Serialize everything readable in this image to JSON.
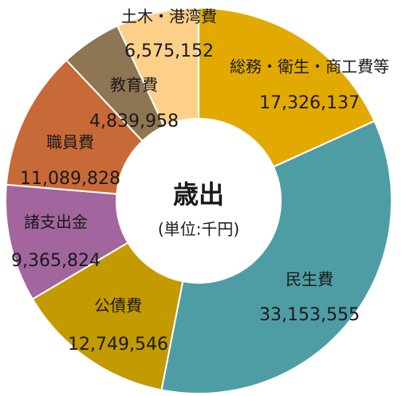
{
  "chart_data": {
    "type": "donut",
    "title": "歳出",
    "subtitle": "(単位:千円)",
    "categories": [
      "総務・衛生・商工費等",
      "民生費",
      "公債費",
      "諸支出金",
      "職員費",
      "教育費",
      "土木・港湾費"
    ],
    "values": [
      17326137,
      33153555,
      12749546,
      9365824,
      11089828,
      4839958,
      6575152
    ],
    "value_labels": [
      "17,326,137",
      "33,153,555",
      "12,749,546",
      "9,365,824",
      "11,089,828",
      "4,839,958",
      "6,575,152"
    ],
    "colors": [
      "#E2AA00",
      "#4F9DA4",
      "#C39A00",
      "#A2659E",
      "#C86A38",
      "#8E7553",
      "#FDD08A"
    ]
  }
}
